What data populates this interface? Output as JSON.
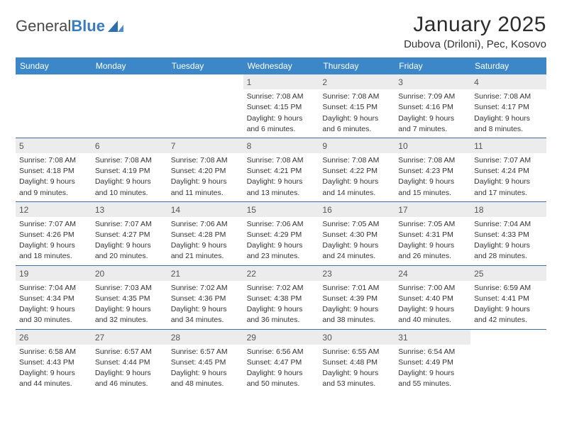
{
  "logo": {
    "word1": "General",
    "word2": "Blue"
  },
  "header": {
    "title": "January 2025",
    "location": "Dubova (Driloni), Pec, Kosovo"
  },
  "colors": {
    "header_bar": "#3b87c8",
    "header_text": "#ffffff",
    "daynum_bg": "#ececec",
    "week_divider": "#3b6fa8",
    "body_text": "#333333"
  },
  "calendar": {
    "day_names": [
      "Sunday",
      "Monday",
      "Tuesday",
      "Wednesday",
      "Thursday",
      "Friday",
      "Saturday"
    ],
    "first_weekday_index": 3,
    "days": [
      {
        "n": 1,
        "sunrise": "7:08 AM",
        "sunset": "4:15 PM",
        "daylight": "9 hours and 6 minutes."
      },
      {
        "n": 2,
        "sunrise": "7:08 AM",
        "sunset": "4:15 PM",
        "daylight": "9 hours and 6 minutes."
      },
      {
        "n": 3,
        "sunrise": "7:09 AM",
        "sunset": "4:16 PM",
        "daylight": "9 hours and 7 minutes."
      },
      {
        "n": 4,
        "sunrise": "7:08 AM",
        "sunset": "4:17 PM",
        "daylight": "9 hours and 8 minutes."
      },
      {
        "n": 5,
        "sunrise": "7:08 AM",
        "sunset": "4:18 PM",
        "daylight": "9 hours and 9 minutes."
      },
      {
        "n": 6,
        "sunrise": "7:08 AM",
        "sunset": "4:19 PM",
        "daylight": "9 hours and 10 minutes."
      },
      {
        "n": 7,
        "sunrise": "7:08 AM",
        "sunset": "4:20 PM",
        "daylight": "9 hours and 11 minutes."
      },
      {
        "n": 8,
        "sunrise": "7:08 AM",
        "sunset": "4:21 PM",
        "daylight": "9 hours and 13 minutes."
      },
      {
        "n": 9,
        "sunrise": "7:08 AM",
        "sunset": "4:22 PM",
        "daylight": "9 hours and 14 minutes."
      },
      {
        "n": 10,
        "sunrise": "7:08 AM",
        "sunset": "4:23 PM",
        "daylight": "9 hours and 15 minutes."
      },
      {
        "n": 11,
        "sunrise": "7:07 AM",
        "sunset": "4:24 PM",
        "daylight": "9 hours and 17 minutes."
      },
      {
        "n": 12,
        "sunrise": "7:07 AM",
        "sunset": "4:26 PM",
        "daylight": "9 hours and 18 minutes."
      },
      {
        "n": 13,
        "sunrise": "7:07 AM",
        "sunset": "4:27 PM",
        "daylight": "9 hours and 20 minutes."
      },
      {
        "n": 14,
        "sunrise": "7:06 AM",
        "sunset": "4:28 PM",
        "daylight": "9 hours and 21 minutes."
      },
      {
        "n": 15,
        "sunrise": "7:06 AM",
        "sunset": "4:29 PM",
        "daylight": "9 hours and 23 minutes."
      },
      {
        "n": 16,
        "sunrise": "7:05 AM",
        "sunset": "4:30 PM",
        "daylight": "9 hours and 24 minutes."
      },
      {
        "n": 17,
        "sunrise": "7:05 AM",
        "sunset": "4:31 PM",
        "daylight": "9 hours and 26 minutes."
      },
      {
        "n": 18,
        "sunrise": "7:04 AM",
        "sunset": "4:33 PM",
        "daylight": "9 hours and 28 minutes."
      },
      {
        "n": 19,
        "sunrise": "7:04 AM",
        "sunset": "4:34 PM",
        "daylight": "9 hours and 30 minutes."
      },
      {
        "n": 20,
        "sunrise": "7:03 AM",
        "sunset": "4:35 PM",
        "daylight": "9 hours and 32 minutes."
      },
      {
        "n": 21,
        "sunrise": "7:02 AM",
        "sunset": "4:36 PM",
        "daylight": "9 hours and 34 minutes."
      },
      {
        "n": 22,
        "sunrise": "7:02 AM",
        "sunset": "4:38 PM",
        "daylight": "9 hours and 36 minutes."
      },
      {
        "n": 23,
        "sunrise": "7:01 AM",
        "sunset": "4:39 PM",
        "daylight": "9 hours and 38 minutes."
      },
      {
        "n": 24,
        "sunrise": "7:00 AM",
        "sunset": "4:40 PM",
        "daylight": "9 hours and 40 minutes."
      },
      {
        "n": 25,
        "sunrise": "6:59 AM",
        "sunset": "4:41 PM",
        "daylight": "9 hours and 42 minutes."
      },
      {
        "n": 26,
        "sunrise": "6:58 AM",
        "sunset": "4:43 PM",
        "daylight": "9 hours and 44 minutes."
      },
      {
        "n": 27,
        "sunrise": "6:57 AM",
        "sunset": "4:44 PM",
        "daylight": "9 hours and 46 minutes."
      },
      {
        "n": 28,
        "sunrise": "6:57 AM",
        "sunset": "4:45 PM",
        "daylight": "9 hours and 48 minutes."
      },
      {
        "n": 29,
        "sunrise": "6:56 AM",
        "sunset": "4:47 PM",
        "daylight": "9 hours and 50 minutes."
      },
      {
        "n": 30,
        "sunrise": "6:55 AM",
        "sunset": "4:48 PM",
        "daylight": "9 hours and 53 minutes."
      },
      {
        "n": 31,
        "sunrise": "6:54 AM",
        "sunset": "4:49 PM",
        "daylight": "9 hours and 55 minutes."
      }
    ],
    "labels": {
      "sunrise": "Sunrise:",
      "sunset": "Sunset:",
      "daylight": "Daylight:"
    }
  }
}
